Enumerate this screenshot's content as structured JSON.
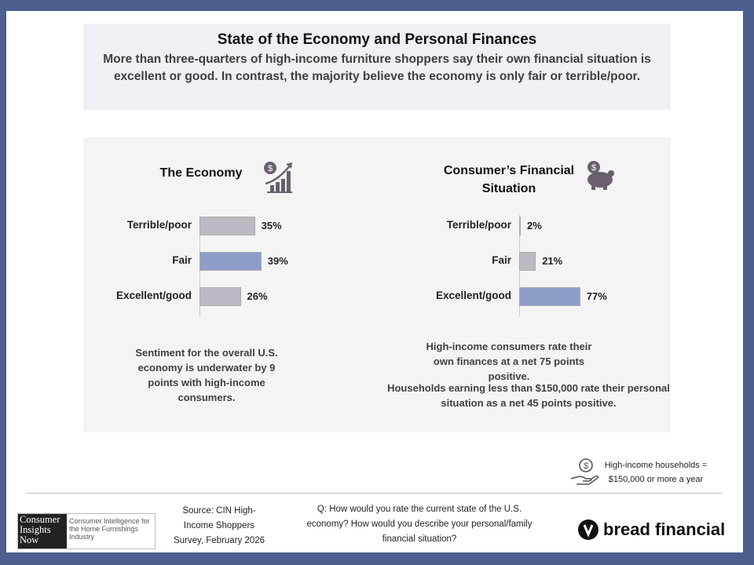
{
  "title": "State of the Economy and Personal Finances",
  "subtitle": "More than three-quarters of high-income furniture shoppers say their own financial situation is excellent or good. In contrast, the majority believe the economy is only fair or terrible/poor.",
  "colors": {
    "highlight": "#8e9dc8",
    "neutral": "#beb8c2",
    "frame": "#4c5f8e",
    "icon": "#6b5f6e"
  },
  "chart_data": [
    {
      "type": "bar",
      "orientation": "horizontal",
      "title": "The Economy",
      "icon": "money-growth-icon",
      "categories": [
        "Terrible/poor",
        "Fair",
        "Excellent/good"
      ],
      "values": [
        35,
        39,
        26
      ],
      "labels": [
        "35%",
        "39%",
        "26%"
      ],
      "highlight": [
        false,
        true,
        false
      ],
      "xlim": [
        0,
        50
      ]
    },
    {
      "type": "bar",
      "orientation": "horizontal",
      "title": "Consumer’s Financial Situation",
      "icon": "piggy-bank-icon",
      "categories": [
        "Terrible/poor",
        "Fair",
        "Excellent/good"
      ],
      "values": [
        2,
        21,
        77
      ],
      "labels": [
        "2%",
        "21%",
        "77%"
      ],
      "highlight": [
        false,
        false,
        true
      ],
      "xlim": [
        0,
        100
      ]
    }
  ],
  "notes": {
    "left": "Sentiment for the overall U.S. economy is underwater by 9 points with high-income consumers.",
    "right1": "High-income consumers rate their own finances at a net 75 points positive.",
    "right2": "Households earning less than $150,000 rate their personal situation as a net 45 points positive."
  },
  "definition": "High-income households = $150,000 or more a year",
  "footer": {
    "logo_main": "Consumer Insights Now",
    "logo_sub": "Consumer Intelligence for the Home Furnishings Industry",
    "source": "Source: CIN High-Income Shoppers Survey, February 2026",
    "question": "Q: How would you rate the current state of the U.S. economy? How would you describe your personal/family financial situation?",
    "brand": "bread financial"
  }
}
